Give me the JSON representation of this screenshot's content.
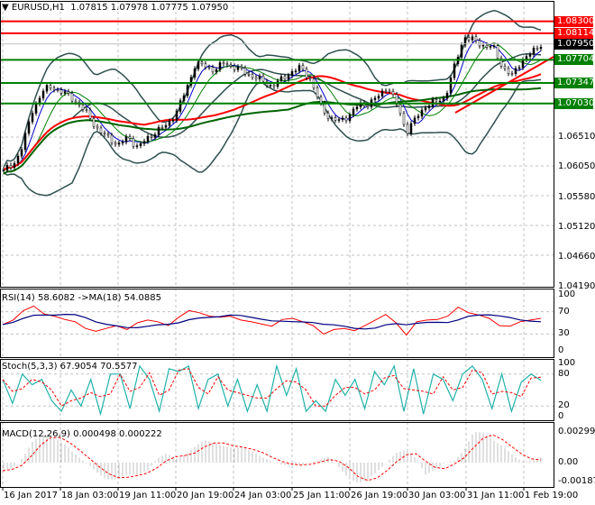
{
  "header": {
    "title": "EURUSD,H1",
    "ohlc": "1.07815 1.07978 1.07775 1.07950"
  },
  "colors": {
    "bull": "#000000",
    "bb": "#2f4f4f",
    "ma_fast": "#008000",
    "ma_slow": "#ff0000",
    "ma_long": "#006400",
    "rsi": "#ff0000",
    "rsi_ma": "#000080",
    "stoch_main": "#20b2aa",
    "stoch_sig": "#ff0000",
    "macd_hist": "#c0c0c0",
    "macd_sig": "#ff0000",
    "level_red": "#ff0000",
    "level_green": "#008000",
    "price_tag": "#000000"
  },
  "chart_data": {
    "type": "line",
    "title": "EURUSD,H1",
    "price_axis": [
      "1.06510",
      "1.06050",
      "1.05580",
      "1.05120",
      "1.04660",
      "1.04190"
    ],
    "levels": [
      {
        "label": "1.08300",
        "value": 1.083,
        "color": "#ff0000"
      },
      {
        "label": "1.08114",
        "value": 1.08114,
        "color": "#ff0000"
      },
      {
        "label": "1.07950",
        "value": 1.0795,
        "color": "#000000",
        "current": true
      },
      {
        "label": "1.07704",
        "value": 1.07704,
        "color": "#008000"
      },
      {
        "label": "1.07347",
        "value": 1.07347,
        "color": "#008000"
      },
      {
        "label": "1.07030",
        "value": 1.0703,
        "color": "#008000"
      }
    ],
    "ylim": [
      1.0417,
      1.0855
    ],
    "time_labels": [
      "16 Jan 2017",
      "18 Jan 03:00",
      "19 Jan 11:00",
      "20 Jan 19:00",
      "24 Jan 03:00",
      "25 Jan 11:00",
      "26 Jan 19:00",
      "30 Jan 03:00",
      "31 Jan 11:00",
      "1 Feb 19:00"
    ],
    "closes": [
      1.06,
      1.0606,
      1.064,
      1.069,
      1.0722,
      1.0728,
      1.0722,
      1.0712,
      1.07,
      1.068,
      1.066,
      1.0648,
      1.064,
      1.065,
      1.0636,
      1.0648,
      1.0662,
      1.0668,
      1.069,
      1.0722,
      1.0765,
      1.076,
      1.0755,
      1.0765,
      1.076,
      1.0752,
      1.0745,
      1.0737,
      1.073,
      1.074,
      1.0752,
      1.0758,
      1.074,
      1.07,
      1.068,
      1.0675,
      1.0685,
      1.07,
      1.0703,
      1.0712,
      1.073,
      1.07,
      1.066,
      1.068,
      1.07,
      1.0705,
      1.0712,
      1.076,
      1.0807,
      1.08,
      1.0793,
      1.079,
      1.076,
      1.0745,
      1.077,
      1.078,
      1.0795
    ],
    "rsi": {
      "label": "RSI(14) 58.6082  ->MA(18) 54.0885",
      "axis": [
        "100",
        "70",
        "30",
        "0"
      ],
      "values": [
        47,
        55,
        72,
        80,
        66,
        62,
        56,
        52,
        40,
        35,
        40,
        45,
        38,
        50,
        55,
        52,
        45,
        60,
        72,
        68,
        62,
        60,
        62,
        55,
        52,
        48,
        44,
        56,
        58,
        52,
        45,
        30,
        38,
        40,
        36,
        45,
        55,
        65,
        50,
        28,
        52,
        55,
        56,
        62,
        78,
        68,
        64,
        58,
        45,
        44,
        52,
        55,
        58
      ]
    },
    "stoch": {
      "label": "Stoch(5,3,3) 67.9054 70.5577",
      "axis": [
        "100",
        "80",
        "20",
        "0"
      ],
      "values": [
        70,
        25,
        80,
        60,
        70,
        30,
        10,
        50,
        20,
        70,
        5,
        80,
        80,
        15,
        95,
        70,
        10,
        90,
        85,
        95,
        15,
        70,
        80,
        20,
        70,
        10,
        60,
        10,
        95,
        40,
        90,
        10,
        30,
        10,
        70,
        40,
        70,
        15,
        85,
        60,
        95,
        10,
        90,
        5,
        80,
        70,
        30,
        80,
        95,
        70,
        15,
        80,
        10,
        65,
        80,
        68
      ]
    },
    "macd": {
      "label": "MACD(12,26,9) 0.000498 0.000222",
      "axis": [
        "0.00299",
        "0.00",
        "-0.00187"
      ],
      "values": [
        -0.0008,
        -0.0005,
        0.0005,
        0.002,
        0.0027,
        0.0026,
        0.002,
        0.0012,
        0.0004,
        -0.0003,
        -0.0012,
        -0.0017,
        -0.0015,
        -0.0011,
        -0.0012,
        -0.0008,
        0.0004,
        0.0009,
        0.0004,
        0.0008,
        0.0016,
        0.0022,
        0.0019,
        0.0016,
        0.0014,
        0.0015,
        0.001,
        0.0005,
        0.0001,
        -0.0002,
        -0.0003,
        -0.0002,
        0.0,
        0.0003,
        0.0006,
        -0.0005,
        -0.0016,
        -0.002,
        -0.0016,
        -0.0008,
        0.0001,
        0.001,
        0.0012,
        0.0004,
        -0.0012,
        -0.0006,
        0.0,
        0.0002,
        0.0012,
        0.003,
        0.0029,
        0.0022,
        0.0016,
        0.0008,
        0.0001,
        0.0002,
        0.0005
      ]
    }
  }
}
